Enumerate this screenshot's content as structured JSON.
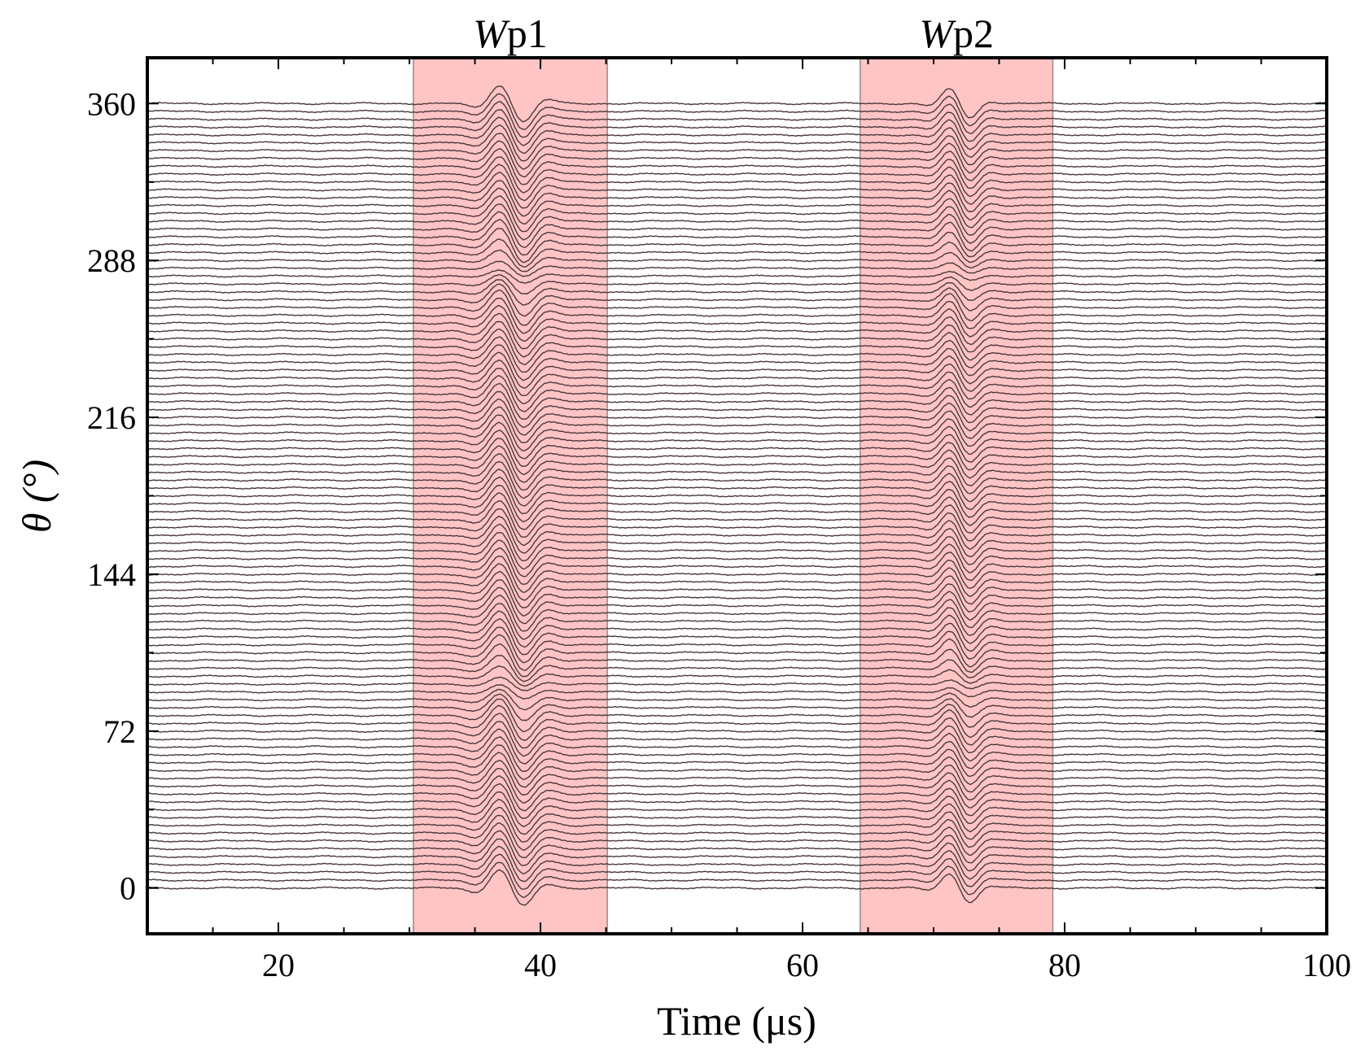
{
  "chart_data": {
    "type": "line",
    "title": "",
    "xlabel": "Time (μs)",
    "ylabel": "θ (°)",
    "xlim": [
      10,
      100
    ],
    "ylim": [
      -21,
      381
    ],
    "x_ticks": [
      20,
      40,
      60,
      80,
      100
    ],
    "y_ticks": [
      0,
      72,
      144,
      216,
      288,
      360
    ],
    "trace_count": 101,
    "trace_angle_step": 3.6,
    "windows": [
      {
        "name": "Wp1",
        "italic_part": "W",
        "suffix": "p1",
        "x_start": 30.3,
        "x_end": 45.1,
        "color": "#ff9c9c"
      },
      {
        "name": "Wp2",
        "italic_part": "W",
        "suffix": "p2",
        "x_start": 64.4,
        "x_end": 79.1,
        "color": "#ff9c9c"
      }
    ],
    "colors": {
      "traces": "#4a3a3a",
      "axes": "#000000"
    }
  }
}
